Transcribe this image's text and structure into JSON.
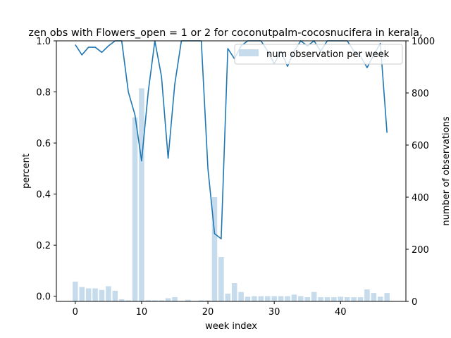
{
  "chart_data": {
    "type": "bar+line",
    "title": "zen obs with Flowers_open = 1 or 2 for coconutpalm-cocosnucifera in kerala,",
    "xlabel": "week index",
    "ylabel_left": "percent",
    "ylabel_right": "number of observations",
    "xlim": [
      -2.85,
      49.85
    ],
    "ylim_left": [
      -0.02,
      1.0
    ],
    "ylim_right": [
      0,
      1000
    ],
    "x_ticks": [
      0,
      10,
      20,
      30,
      40
    ],
    "y_ticks_left": [
      0.0,
      0.2,
      0.4,
      0.6,
      0.8,
      1.0
    ],
    "y_ticks_right": [
      0,
      200,
      400,
      600,
      800,
      1000
    ],
    "grid": false,
    "legend": {
      "placement": "top-right",
      "entries": [
        "num observation per week"
      ]
    },
    "colors": {
      "line": "#1f77b4",
      "bars": "#c6dbeb"
    },
    "x": [
      0,
      1,
      2,
      3,
      4,
      5,
      6,
      7,
      8,
      9,
      10,
      11,
      12,
      13,
      14,
      15,
      16,
      17,
      18,
      19,
      20,
      21,
      22,
      23,
      24,
      25,
      26,
      27,
      28,
      29,
      30,
      31,
      32,
      33,
      34,
      35,
      36,
      37,
      38,
      39,
      40,
      41,
      42,
      43,
      44,
      45,
      46,
      47
    ],
    "bars": {
      "name": "num observation per week",
      "values": [
        76,
        55,
        50,
        50,
        44,
        58,
        41,
        8,
        4,
        706,
        818,
        5,
        4,
        4,
        12,
        16,
        0,
        6,
        0,
        4,
        4,
        400,
        170,
        30,
        70,
        36,
        18,
        20,
        20,
        20,
        20,
        20,
        20,
        26,
        20,
        16,
        36,
        16,
        16,
        16,
        18,
        16,
        16,
        16,
        46,
        32,
        18,
        32
      ]
    },
    "line": {
      "values": [
        0.985,
        0.945,
        0.975,
        0.975,
        0.955,
        0.98,
        1.0,
        1.0,
        0.8,
        0.71,
        0.53,
        0.8,
        1.0,
        0.86,
        0.54,
        0.83,
        1.0,
        1.0,
        1.0,
        1.0,
        0.5,
        0.245,
        0.225,
        0.97,
        0.93,
        0.98,
        1.0,
        1.0,
        1.0,
        0.96,
        0.91,
        0.96,
        0.9,
        0.96,
        1.0,
        0.98,
        1.0,
        0.96,
        1.0,
        1.0,
        1.0,
        1.0,
        0.96,
        0.94,
        0.895,
        0.945,
        0.99,
        0.64
      ]
    }
  }
}
